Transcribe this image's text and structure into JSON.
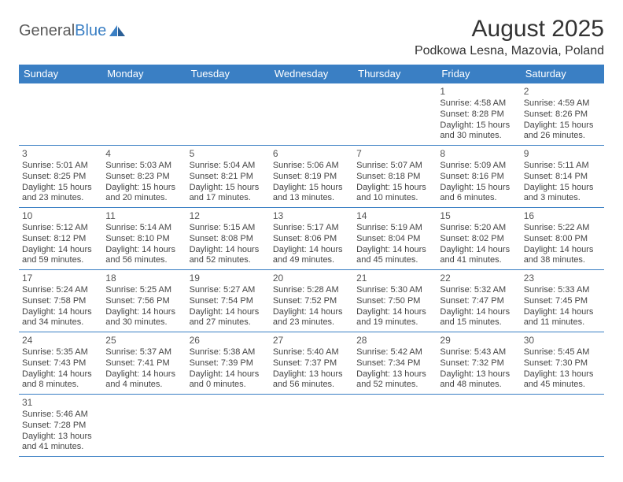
{
  "logo": {
    "word1": "General",
    "word2": "Blue"
  },
  "title": "August 2025",
  "location": "Podkowa Lesna, Mazovia, Poland",
  "colors": {
    "header_bg": "#3a7fc4",
    "header_text": "#ffffff",
    "border": "#3a7fc4",
    "text": "#444444",
    "title_text": "#333333",
    "logo_gray": "#5a5a5a",
    "logo_blue": "#3a7fc4",
    "page_bg": "#ffffff"
  },
  "typography": {
    "title_fontsize": 30,
    "location_fontsize": 16,
    "header_fontsize": 13,
    "cell_fontsize": 11,
    "daynum_fontsize": 12
  },
  "day_headers": [
    "Sunday",
    "Monday",
    "Tuesday",
    "Wednesday",
    "Thursday",
    "Friday",
    "Saturday"
  ],
  "weeks": [
    [
      null,
      null,
      null,
      null,
      null,
      {
        "n": "1",
        "sr": "Sunrise: 4:58 AM",
        "ss": "Sunset: 8:28 PM",
        "d1": "Daylight: 15 hours",
        "d2": "and 30 minutes."
      },
      {
        "n": "2",
        "sr": "Sunrise: 4:59 AM",
        "ss": "Sunset: 8:26 PM",
        "d1": "Daylight: 15 hours",
        "d2": "and 26 minutes."
      }
    ],
    [
      {
        "n": "3",
        "sr": "Sunrise: 5:01 AM",
        "ss": "Sunset: 8:25 PM",
        "d1": "Daylight: 15 hours",
        "d2": "and 23 minutes."
      },
      {
        "n": "4",
        "sr": "Sunrise: 5:03 AM",
        "ss": "Sunset: 8:23 PM",
        "d1": "Daylight: 15 hours",
        "d2": "and 20 minutes."
      },
      {
        "n": "5",
        "sr": "Sunrise: 5:04 AM",
        "ss": "Sunset: 8:21 PM",
        "d1": "Daylight: 15 hours",
        "d2": "and 17 minutes."
      },
      {
        "n": "6",
        "sr": "Sunrise: 5:06 AM",
        "ss": "Sunset: 8:19 PM",
        "d1": "Daylight: 15 hours",
        "d2": "and 13 minutes."
      },
      {
        "n": "7",
        "sr": "Sunrise: 5:07 AM",
        "ss": "Sunset: 8:18 PM",
        "d1": "Daylight: 15 hours",
        "d2": "and 10 minutes."
      },
      {
        "n": "8",
        "sr": "Sunrise: 5:09 AM",
        "ss": "Sunset: 8:16 PM",
        "d1": "Daylight: 15 hours",
        "d2": "and 6 minutes."
      },
      {
        "n": "9",
        "sr": "Sunrise: 5:11 AM",
        "ss": "Sunset: 8:14 PM",
        "d1": "Daylight: 15 hours",
        "d2": "and 3 minutes."
      }
    ],
    [
      {
        "n": "10",
        "sr": "Sunrise: 5:12 AM",
        "ss": "Sunset: 8:12 PM",
        "d1": "Daylight: 14 hours",
        "d2": "and 59 minutes."
      },
      {
        "n": "11",
        "sr": "Sunrise: 5:14 AM",
        "ss": "Sunset: 8:10 PM",
        "d1": "Daylight: 14 hours",
        "d2": "and 56 minutes."
      },
      {
        "n": "12",
        "sr": "Sunrise: 5:15 AM",
        "ss": "Sunset: 8:08 PM",
        "d1": "Daylight: 14 hours",
        "d2": "and 52 minutes."
      },
      {
        "n": "13",
        "sr": "Sunrise: 5:17 AM",
        "ss": "Sunset: 8:06 PM",
        "d1": "Daylight: 14 hours",
        "d2": "and 49 minutes."
      },
      {
        "n": "14",
        "sr": "Sunrise: 5:19 AM",
        "ss": "Sunset: 8:04 PM",
        "d1": "Daylight: 14 hours",
        "d2": "and 45 minutes."
      },
      {
        "n": "15",
        "sr": "Sunrise: 5:20 AM",
        "ss": "Sunset: 8:02 PM",
        "d1": "Daylight: 14 hours",
        "d2": "and 41 minutes."
      },
      {
        "n": "16",
        "sr": "Sunrise: 5:22 AM",
        "ss": "Sunset: 8:00 PM",
        "d1": "Daylight: 14 hours",
        "d2": "and 38 minutes."
      }
    ],
    [
      {
        "n": "17",
        "sr": "Sunrise: 5:24 AM",
        "ss": "Sunset: 7:58 PM",
        "d1": "Daylight: 14 hours",
        "d2": "and 34 minutes."
      },
      {
        "n": "18",
        "sr": "Sunrise: 5:25 AM",
        "ss": "Sunset: 7:56 PM",
        "d1": "Daylight: 14 hours",
        "d2": "and 30 minutes."
      },
      {
        "n": "19",
        "sr": "Sunrise: 5:27 AM",
        "ss": "Sunset: 7:54 PM",
        "d1": "Daylight: 14 hours",
        "d2": "and 27 minutes."
      },
      {
        "n": "20",
        "sr": "Sunrise: 5:28 AM",
        "ss": "Sunset: 7:52 PM",
        "d1": "Daylight: 14 hours",
        "d2": "and 23 minutes."
      },
      {
        "n": "21",
        "sr": "Sunrise: 5:30 AM",
        "ss": "Sunset: 7:50 PM",
        "d1": "Daylight: 14 hours",
        "d2": "and 19 minutes."
      },
      {
        "n": "22",
        "sr": "Sunrise: 5:32 AM",
        "ss": "Sunset: 7:47 PM",
        "d1": "Daylight: 14 hours",
        "d2": "and 15 minutes."
      },
      {
        "n": "23",
        "sr": "Sunrise: 5:33 AM",
        "ss": "Sunset: 7:45 PM",
        "d1": "Daylight: 14 hours",
        "d2": "and 11 minutes."
      }
    ],
    [
      {
        "n": "24",
        "sr": "Sunrise: 5:35 AM",
        "ss": "Sunset: 7:43 PM",
        "d1": "Daylight: 14 hours",
        "d2": "and 8 minutes."
      },
      {
        "n": "25",
        "sr": "Sunrise: 5:37 AM",
        "ss": "Sunset: 7:41 PM",
        "d1": "Daylight: 14 hours",
        "d2": "and 4 minutes."
      },
      {
        "n": "26",
        "sr": "Sunrise: 5:38 AM",
        "ss": "Sunset: 7:39 PM",
        "d1": "Daylight: 14 hours",
        "d2": "and 0 minutes."
      },
      {
        "n": "27",
        "sr": "Sunrise: 5:40 AM",
        "ss": "Sunset: 7:37 PM",
        "d1": "Daylight: 13 hours",
        "d2": "and 56 minutes."
      },
      {
        "n": "28",
        "sr": "Sunrise: 5:42 AM",
        "ss": "Sunset: 7:34 PM",
        "d1": "Daylight: 13 hours",
        "d2": "and 52 minutes."
      },
      {
        "n": "29",
        "sr": "Sunrise: 5:43 AM",
        "ss": "Sunset: 7:32 PM",
        "d1": "Daylight: 13 hours",
        "d2": "and 48 minutes."
      },
      {
        "n": "30",
        "sr": "Sunrise: 5:45 AM",
        "ss": "Sunset: 7:30 PM",
        "d1": "Daylight: 13 hours",
        "d2": "and 45 minutes."
      }
    ],
    [
      {
        "n": "31",
        "sr": "Sunrise: 5:46 AM",
        "ss": "Sunset: 7:28 PM",
        "d1": "Daylight: 13 hours",
        "d2": "and 41 minutes."
      },
      null,
      null,
      null,
      null,
      null,
      null
    ]
  ]
}
